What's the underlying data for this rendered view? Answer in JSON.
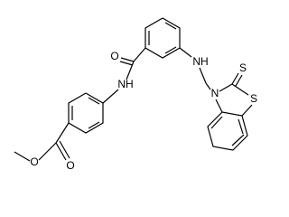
{
  "atoms": [
    {
      "label": "O"
    },
    {
      "label": "O"
    },
    {
      "label": "NH"
    },
    {
      "label": "O"
    },
    {
      "label": "NH"
    },
    {
      "label": "N"
    },
    {
      "label": "S"
    },
    {
      "label": "S"
    }
  ]
}
